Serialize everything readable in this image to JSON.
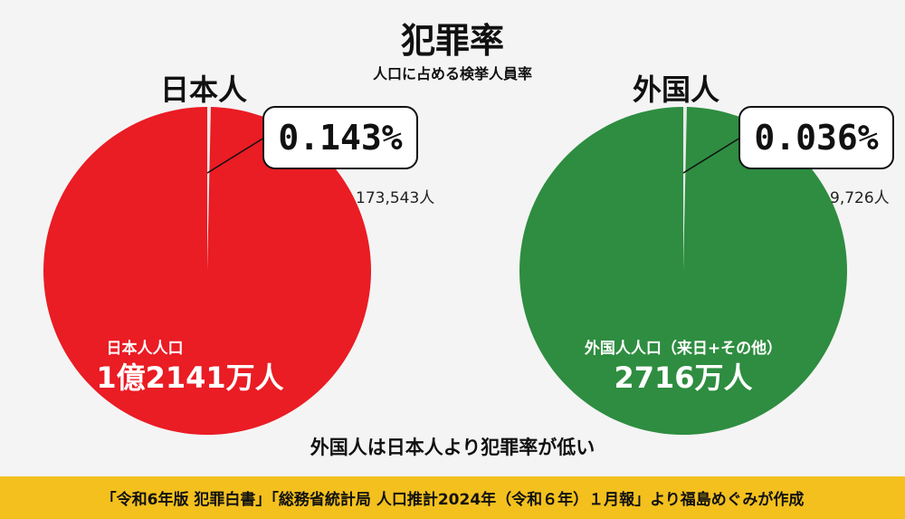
{
  "chart_data": [
    {
      "type": "pie",
      "label": "日本人",
      "percent_label": "0.143%",
      "slices": [
        {
          "value": 0.143,
          "count_label": "173,543人",
          "color": "#e8e8e8"
        },
        {
          "value": 99.857,
          "label": "日本人人口",
          "value_label": "1億2141万人",
          "color": "#ea1c24"
        }
      ]
    },
    {
      "type": "pie",
      "label": "外国人",
      "percent_label": "0.036%",
      "slices": [
        {
          "value": 0.036,
          "count_label": "9,726人",
          "color": "#e8e8e8"
        },
        {
          "value": 99.964,
          "label": "外国人人口（来日+その他）",
          "value_label": "2716万人",
          "color": "#2e8d40"
        }
      ]
    }
  ],
  "title": "犯罪率",
  "subtitle": "人口に占める検挙人員率",
  "conclusion": "外国人は日本人より犯罪率が低い",
  "footer": "「令和6年版 犯罪白書」「総務省統計局 人口推計2024年（令和６年）１月報」より福島めぐみが作成"
}
